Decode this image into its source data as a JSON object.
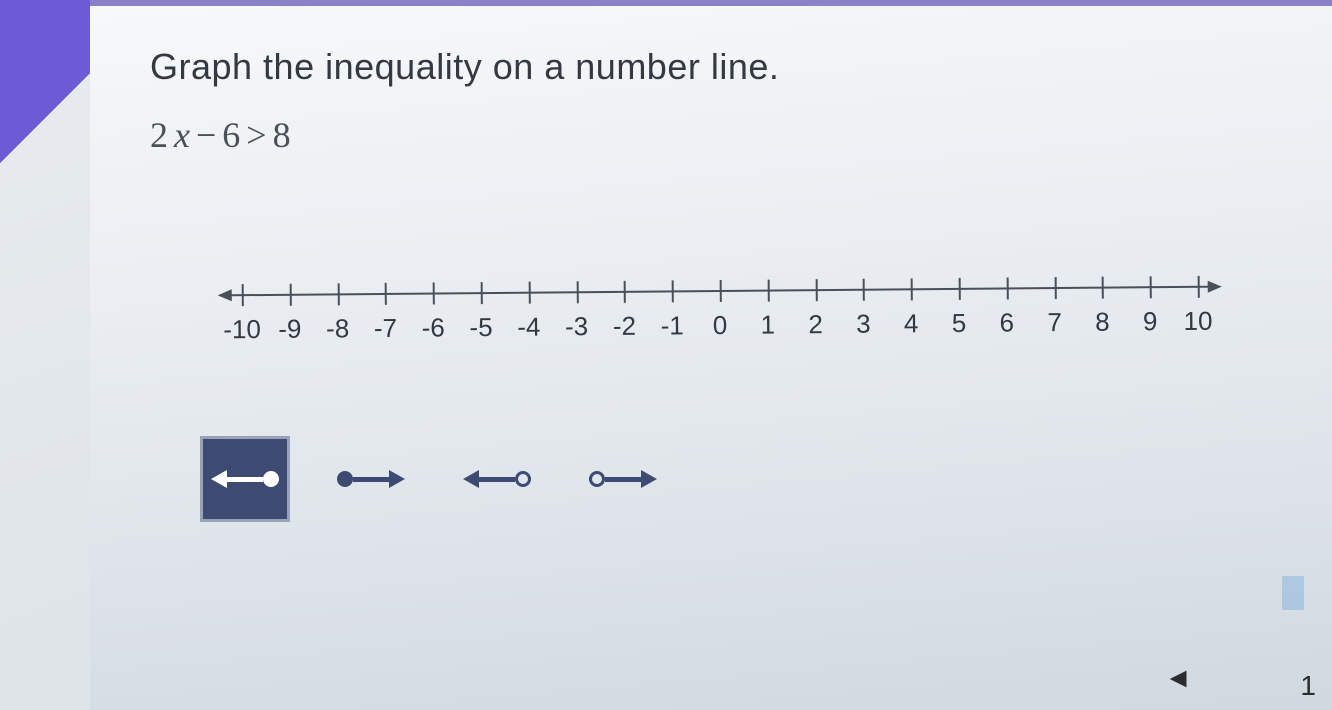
{
  "instruction": "Graph the inequality on a number line.",
  "inequality": {
    "coef": "2",
    "var": "x",
    "op1": "−",
    "c1": "6",
    "rel": ">",
    "rhs": "8"
  },
  "numberline": {
    "min": -10,
    "max": 10,
    "labels": [
      "-10",
      "-9",
      "-8",
      "-7",
      "-6",
      "-5",
      "-4",
      "-3",
      "-2",
      "-1",
      "0",
      "1",
      "2",
      "3",
      "4",
      "5",
      "6",
      "7",
      "8",
      "9",
      "10"
    ],
    "axis_color": "#4a4f5a",
    "label_color": "#333842",
    "label_fontsize": 26
  },
  "tools": [
    {
      "id": "closed-left",
      "endpoint": "closed",
      "direction": "left",
      "selected": true
    },
    {
      "id": "closed-right",
      "endpoint": "closed",
      "direction": "right",
      "selected": false
    },
    {
      "id": "open-left",
      "endpoint": "open",
      "direction": "left",
      "selected": false
    },
    {
      "id": "open-right",
      "endpoint": "open",
      "direction": "right",
      "selected": false
    }
  ],
  "colors": {
    "tool_fill": "#3d4b72",
    "selected_bg": "#3d4b72",
    "selected_fg": "#ffffff",
    "page_bg": "#e8ecef",
    "sidebar": "#6b5bd4"
  },
  "footer": {
    "page": "1",
    "nav": "◄"
  }
}
